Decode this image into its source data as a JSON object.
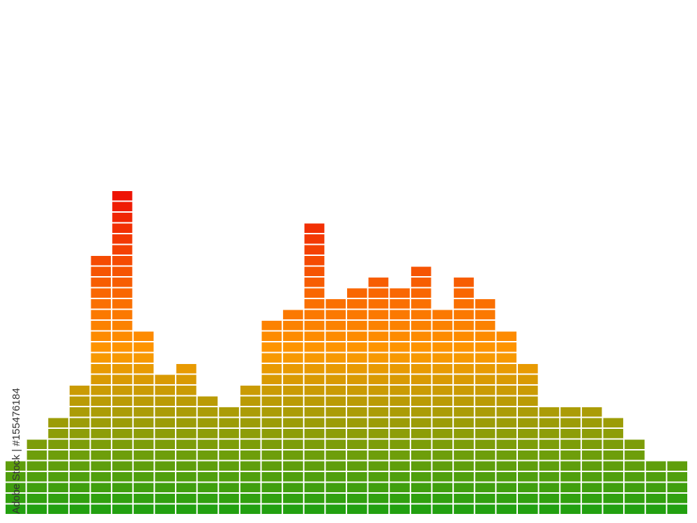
{
  "chart_data": {
    "type": "segmented-bar",
    "values": [
      5,
      7,
      9,
      12,
      24,
      30,
      17,
      13,
      14,
      11,
      10,
      12,
      18,
      19,
      27,
      20,
      21,
      22,
      21,
      23,
      19,
      22,
      20,
      17,
      14,
      10,
      10,
      10,
      9,
      7,
      5,
      5
    ],
    "colors": [
      "#22a010",
      "#ff9900",
      "#ee1405"
    ],
    "watermark": "Adobe Stock | #155476184"
  }
}
